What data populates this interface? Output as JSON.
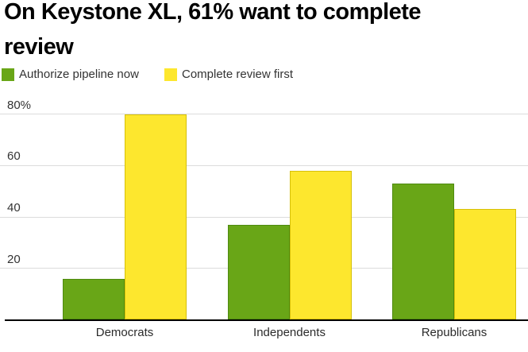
{
  "title": "On Keystone XL, 61% want to complete review",
  "title_lines": [
    "On Keystone XL, 61% want to complete",
    "review"
  ],
  "legend": [
    {
      "label": "Authorize pipeline now",
      "color": "#69a617"
    },
    {
      "label": "Complete review first",
      "color": "#fde72e"
    }
  ],
  "colors": {
    "green_fill": "#69a617",
    "green_border": "#4e8a10",
    "yellow_fill": "#fde72e",
    "yellow_border": "#d6c009",
    "gridline": "#dcdcdc",
    "axis": "#000000",
    "text": "#333333"
  },
  "chart_data": {
    "type": "bar",
    "title": "On Keystone XL, 61% want to complete review",
    "categories": [
      "Democrats",
      "Independents",
      "Republicans"
    ],
    "series": [
      {
        "name": "Authorize pipeline now",
        "color": "#69a617",
        "border": "#4e8a10",
        "values": [
          16,
          37,
          53
        ]
      },
      {
        "name": "Complete review first",
        "color": "#fde72e",
        "border": "#d6c009",
        "values": [
          80,
          58,
          43
        ]
      }
    ],
    "xlabel": "",
    "ylabel": "",
    "ylim": [
      0,
      80
    ],
    "yticks": [
      {
        "value": 20,
        "label": "20"
      },
      {
        "value": 40,
        "label": "40"
      },
      {
        "value": 60,
        "label": "60"
      },
      {
        "value": 80,
        "label": "80%"
      }
    ],
    "grid": true,
    "legend_position": "top-left"
  }
}
